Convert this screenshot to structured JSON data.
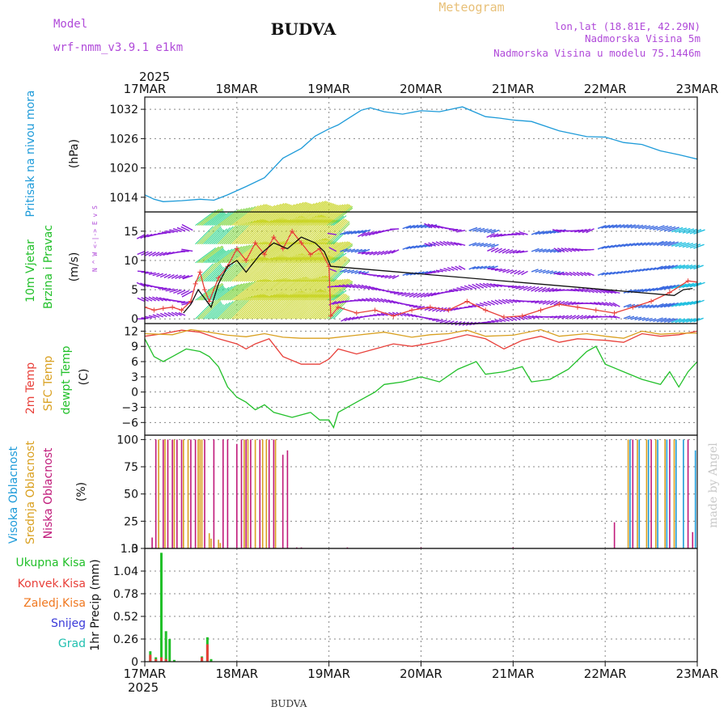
{
  "header": {
    "model_label": "Model",
    "model_name": "wrf-nmm_v3.9.1  e1km",
    "station": "BUDVA",
    "product": "Meteogram",
    "lonlat": "lon,lat (18.81E, 42.29N)",
    "elevation": "Nadmorska Visina 5m",
    "model_elevation": "Nadmorska Visina u modelu 75.1446m"
  },
  "footer": {
    "station": "BUDVA",
    "credit": "made by Angel"
  },
  "time_axis": {
    "year": "2025",
    "labels": [
      "17MAR",
      "18MAR",
      "19MAR",
      "20MAR",
      "21MAR",
      "22MAR",
      "23MAR"
    ]
  },
  "colors": {
    "pressure": "#1e9bd9",
    "temp2m": "#e8403a",
    "sfc_temp": "#d9a020",
    "dewpoint": "#22c02a",
    "high_cloud": "#1e9bd9",
    "mid_cloud": "#d9a020",
    "low_cloud": "#c01a7a",
    "total_precip": "#22c02a",
    "conv_precip": "#e8403a",
    "frz_precip": "#f07820",
    "snow": "#3b3bd9",
    "graupel": "#22c0b0",
    "wind_purple": "#8a1ad9",
    "gust_marker": "#e8403a"
  },
  "chart_data": [
    {
      "type": "line",
      "panel": "pressure",
      "ylabel_left": "Pritisak na nivou mora",
      "units": "(hPa)",
      "yticks": [
        1014,
        1020,
        1026,
        1032
      ],
      "ylim": [
        1011,
        1034.5
      ],
      "grid": true,
      "series": [
        {
          "color_key": "pressure",
          "x": [
            0,
            0.1,
            0.2,
            0.4,
            0.6,
            0.75,
            0.9,
            1.1,
            1.3,
            1.5,
            1.7,
            1.85,
            2.0,
            2.1,
            2.2,
            2.35,
            2.45,
            2.6,
            2.8,
            3.0,
            3.2,
            3.45,
            3.7,
            3.85,
            4.0,
            4.2,
            4.5,
            4.8,
            5.0,
            5.2,
            5.4,
            5.6,
            5.8,
            6.0
          ],
          "y": [
            1014.5,
            1013.6,
            1013.1,
            1013.3,
            1013.6,
            1013.4,
            1014.5,
            1016.2,
            1018,
            1022,
            1024,
            1026.5,
            1028,
            1028.8,
            1030,
            1031.8,
            1032.3,
            1031.5,
            1031,
            1031.7,
            1031.5,
            1032.5,
            1030.5,
            1030.2,
            1029.8,
            1029.5,
            1027.6,
            1026.4,
            1026.3,
            1025.2,
            1024.8,
            1023.5,
            1022.7,
            1021.8
          ]
        }
      ]
    },
    {
      "type": "line",
      "panel": "wind",
      "ylabel_left": "10m Vjetar",
      "ylabel_left2": "Brzina i Pravac",
      "units": "(m/s)",
      "compass": "N ^ W <-|-> E v S",
      "yticks": [
        0,
        5,
        10,
        15
      ],
      "ylim": [
        -0.8,
        18.3
      ],
      "grid": true,
      "series": [
        {
          "name": "speed",
          "color_key": "temp2m",
          "x": [
            0,
            0.1,
            0.2,
            0.3,
            0.4,
            0.5,
            0.55,
            0.6,
            0.65,
            0.7,
            0.8,
            0.9,
            1.0,
            1.1,
            1.2,
            1.3,
            1.4,
            1.5,
            1.6,
            1.7,
            1.8,
            1.9,
            2.0,
            2.02,
            2.1,
            2.3,
            2.5,
            2.7,
            2.9,
            3.1,
            3.3,
            3.5,
            3.7,
            3.9,
            4.1,
            4.3,
            4.5,
            4.7,
            4.9,
            5.1,
            5.3,
            5.5,
            5.7,
            5.9,
            6.0
          ],
          "y": [
            2,
            1.5,
            1.8,
            2,
            1.5,
            3,
            6,
            8,
            5,
            3,
            7,
            9,
            12,
            10,
            13,
            11,
            14,
            12,
            15,
            13,
            11,
            12,
            9,
            0.5,
            2,
            1,
            1.5,
            0.5,
            1.5,
            2,
            1.5,
            3,
            1.5,
            0.3,
            0.5,
            1.5,
            2.5,
            2,
            1.5,
            1,
            2,
            3,
            4.5,
            6.5,
            6.3
          ]
        },
        {
          "name": "gust_curve",
          "color_key": "black",
          "x": [
            0.42,
            0.5,
            0.58,
            0.65,
            0.72,
            0.8,
            0.9,
            1.0,
            1.1,
            1.25,
            1.4,
            1.55,
            1.7,
            1.85,
            1.95,
            2.02,
            5.75,
            5.85,
            5.95
          ],
          "y": [
            1,
            2.5,
            5,
            3.5,
            2,
            6,
            9,
            10,
            8,
            11,
            13,
            12,
            14,
            13,
            11.5,
            9,
            4,
            5,
            5.2
          ]
        }
      ]
    },
    {
      "type": "line",
      "panel": "temperature",
      "ylabel_left": "2m Temp",
      "ylabel_left2": "SFC Temp",
      "ylabel_left3": "dewpt Temp",
      "units": "(C)",
      "yticks": [
        -6,
        -3,
        0,
        3,
        6,
        9,
        12
      ],
      "ylim": [
        -8.5,
        13.5
      ],
      "grid": true,
      "series": [
        {
          "name": "2m Temp",
          "color_key": "temp2m",
          "x": [
            0,
            0.2,
            0.4,
            0.6,
            0.8,
            1.0,
            1.1,
            1.2,
            1.35,
            1.5,
            1.7,
            1.9,
            2.0,
            2.1,
            2.3,
            2.5,
            2.7,
            2.9,
            3.0,
            3.2,
            3.5,
            3.7,
            3.9,
            4.1,
            4.3,
            4.5,
            4.7,
            4.9,
            5.0,
            5.2,
            5.4,
            5.6,
            5.8,
            6.0
          ],
          "y": [
            11,
            11.5,
            12.2,
            11.8,
            10.5,
            9.5,
            8.5,
            9.5,
            10.5,
            7,
            5.5,
            5.5,
            6.5,
            8.5,
            7.5,
            8.5,
            9.5,
            9,
            9.3,
            10,
            11.3,
            10.5,
            8.5,
            10.2,
            11,
            9.8,
            10.5,
            10.3,
            10.2,
            9.8,
            11.5,
            11,
            11.3,
            12
          ]
        },
        {
          "name": "SFC Temp",
          "color_key": "sfc_temp",
          "x": [
            0,
            0.3,
            0.5,
            0.7,
            0.9,
            1.1,
            1.3,
            1.5,
            1.7,
            2.0,
            2.3,
            2.6,
            2.9,
            3.1,
            3.3,
            3.5,
            3.7,
            4.0,
            4.3,
            4.5,
            4.8,
            5.0,
            5.2,
            5.4,
            5.6,
            5.8,
            6.0
          ],
          "y": [
            11.5,
            11.3,
            12.3,
            11.8,
            11.2,
            10.9,
            11.5,
            10.8,
            10.6,
            10.6,
            11.2,
            11.8,
            10.8,
            11.3,
            11.5,
            12.2,
            11,
            11.2,
            12.3,
            11,
            11.5,
            11,
            10.6,
            12,
            11.4,
            11.6,
            11.6
          ]
        },
        {
          "name": "dewpt Temp",
          "color_key": "dewpoint",
          "x": [
            0,
            0.1,
            0.2,
            0.3,
            0.45,
            0.6,
            0.7,
            0.8,
            0.9,
            1.0,
            1.1,
            1.2,
            1.3,
            1.4,
            1.5,
            1.6,
            1.7,
            1.8,
            1.9,
            2.0,
            2.05,
            2.1,
            2.3,
            2.5,
            2.6,
            2.8,
            3.0,
            3.2,
            3.4,
            3.6,
            3.7,
            3.9,
            4.1,
            4.2,
            4.4,
            4.6,
            4.8,
            4.9,
            5.0,
            5.2,
            5.4,
            5.6,
            5.7,
            5.8,
            5.9,
            6.0
          ],
          "y": [
            10.5,
            7,
            6,
            7,
            8.5,
            8,
            7,
            5,
            1,
            -1,
            -2,
            -3.5,
            -2.5,
            -4,
            -4.5,
            -5,
            -4.5,
            -4,
            -5.5,
            -5.5,
            -7,
            -4,
            -2,
            0,
            1.5,
            2,
            3,
            2,
            4.5,
            6,
            3.5,
            4,
            5,
            2,
            2.5,
            4.5,
            8,
            9,
            5.5,
            4,
            2.5,
            1.5,
            4,
            1,
            4,
            6
          ]
        }
      ]
    },
    {
      "type": "bar",
      "panel": "clouds",
      "ylabel_left": "Visoka Oblacnost",
      "ylabel_left2": "Srednja Oblacnost",
      "ylabel_left3": "Niska Oblacnost",
      "units": "(%)",
      "yticks": [
        0,
        25,
        50,
        75,
        100
      ],
      "ylim": [
        0,
        104
      ],
      "grid": true,
      "series": [
        {
          "name": "low",
          "color_key": "low_cloud",
          "x": [
            0.08,
            0.12,
            0.2,
            0.25,
            0.3,
            0.35,
            0.4,
            0.5,
            0.55,
            0.65,
            0.75,
            0.85,
            0.9,
            1.0,
            1.05,
            1.1,
            1.15,
            1.25,
            1.35,
            1.4,
            1.5,
            1.55,
            1.65,
            1.7,
            2.2,
            3.0,
            4.0,
            5.1,
            5.3,
            5.5,
            5.7,
            5.9,
            5.95
          ],
          "y": [
            10,
            100,
            100,
            100,
            100,
            100,
            100,
            100,
            100,
            100,
            100,
            100,
            100,
            96,
            100,
            100,
            100,
            100,
            100,
            100,
            86,
            90,
            1,
            1,
            1,
            1,
            1,
            24,
            100,
            100,
            100,
            100,
            15
          ]
        },
        {
          "name": "mid",
          "color_key": "mid_cloud",
          "x": [
            0.15,
            0.22,
            0.32,
            0.42,
            0.47,
            0.58,
            0.6,
            0.62,
            0.7,
            0.72,
            0.8,
            0.82,
            1.08,
            1.12,
            1.2,
            1.28,
            1.32,
            1.42,
            5.25,
            5.35,
            5.45,
            5.55,
            5.65,
            5.75
          ],
          "y": [
            100,
            100,
            100,
            100,
            100,
            100,
            100,
            100,
            14,
            9,
            8,
            5,
            100,
            100,
            100,
            100,
            100,
            100,
            100,
            100,
            100,
            100,
            100,
            100
          ]
        },
        {
          "name": "high",
          "color_key": "high_cloud",
          "x": [
            5.27,
            5.37,
            5.47,
            5.57,
            5.67,
            5.77,
            5.85,
            5.98
          ],
          "y": [
            100,
            100,
            100,
            100,
            100,
            100,
            100,
            90
          ]
        }
      ]
    },
    {
      "type": "bar",
      "panel": "precipitation",
      "legend": [
        "Ukupna Kisa",
        "Konvek.Kisa",
        "Zaledj.Kisa",
        "Snijeg",
        "Grad"
      ],
      "ylabel_left": "1hr Precip (mm)",
      "yticks": [
        0,
        0.26,
        0.52,
        0.78,
        1.04,
        1.3
      ],
      "ylim": [
        0,
        1.3
      ],
      "grid": true,
      "series": [
        {
          "name": "total",
          "color_key": "total_precip",
          "x": [
            0.06,
            0.12,
            0.18,
            0.23,
            0.27,
            0.32,
            0.62,
            0.68,
            0.72
          ],
          "y": [
            0.12,
            0.05,
            1.25,
            0.35,
            0.26,
            0.02,
            0.06,
            0.28,
            0.03
          ]
        },
        {
          "name": "convective",
          "color_key": "conv_precip",
          "x": [
            0.06,
            0.12,
            0.18,
            0.23,
            0.62,
            0.68
          ],
          "y": [
            0.08,
            0.03,
            0.05,
            0.03,
            0.05,
            0.2
          ]
        }
      ]
    }
  ]
}
